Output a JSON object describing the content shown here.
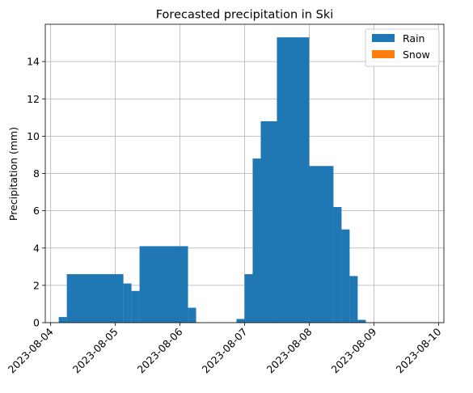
{
  "chart_data": {
    "type": "bar",
    "title": "Forecasted precipitation in Ski",
    "xlabel": "",
    "ylabel": "Precipitation (mm)",
    "x_axis_type": "datetime",
    "xlim": [
      "2023-08-03T22:00",
      "2023-08-10T02:00"
    ],
    "ylim": [
      0,
      16
    ],
    "xticks": [
      "2023-08-04",
      "2023-08-05",
      "2023-08-06",
      "2023-08-07",
      "2023-08-08",
      "2023-08-09",
      "2023-08-10"
    ],
    "yticks": [
      0,
      2,
      4,
      6,
      8,
      10,
      12,
      14
    ],
    "grid": true,
    "legend_position": "top-right",
    "series": [
      {
        "name": "Rain",
        "color": "#1f77b4",
        "bars": [
          {
            "start": "2023-08-04T03:00",
            "end": "2023-08-04T06:00",
            "value": 0.3
          },
          {
            "start": "2023-08-04T06:00",
            "end": "2023-08-05T03:00",
            "value": 2.6
          },
          {
            "start": "2023-08-05T03:00",
            "end": "2023-08-05T06:00",
            "value": 2.1
          },
          {
            "start": "2023-08-05T06:00",
            "end": "2023-08-05T09:00",
            "value": 1.7
          },
          {
            "start": "2023-08-05T09:00",
            "end": "2023-08-06T03:00",
            "value": 4.1
          },
          {
            "start": "2023-08-06T03:00",
            "end": "2023-08-06T06:00",
            "value": 0.8
          },
          {
            "start": "2023-08-06T21:00",
            "end": "2023-08-07T00:00",
            "value": 0.2
          },
          {
            "start": "2023-08-07T00:00",
            "end": "2023-08-07T03:00",
            "value": 2.6
          },
          {
            "start": "2023-08-07T03:00",
            "end": "2023-08-07T06:00",
            "value": 8.8
          },
          {
            "start": "2023-08-07T06:00",
            "end": "2023-08-07T12:00",
            "value": 10.8
          },
          {
            "start": "2023-08-07T12:00",
            "end": "2023-08-08T00:00",
            "value": 15.3
          },
          {
            "start": "2023-08-08T00:00",
            "end": "2023-08-08T09:00",
            "value": 8.4
          },
          {
            "start": "2023-08-08T09:00",
            "end": "2023-08-08T12:00",
            "value": 6.2
          },
          {
            "start": "2023-08-08T12:00",
            "end": "2023-08-08T15:00",
            "value": 5.0
          },
          {
            "start": "2023-08-08T15:00",
            "end": "2023-08-08T18:00",
            "value": 2.5
          },
          {
            "start": "2023-08-08T18:00",
            "end": "2023-08-08T21:00",
            "value": 0.15
          }
        ]
      },
      {
        "name": "Snow",
        "color": "#ff7f0e",
        "bars": []
      }
    ]
  }
}
